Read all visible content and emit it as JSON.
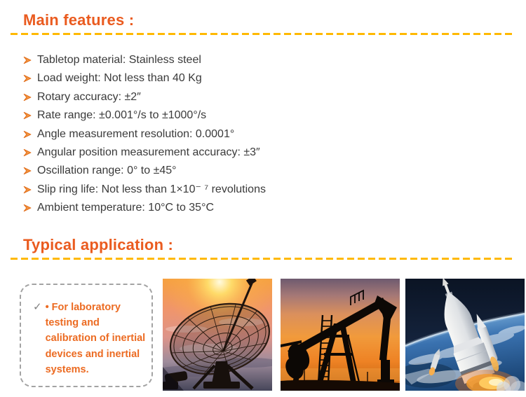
{
  "colors": {
    "heading_orange": "#EA5B1F",
    "divider_gold": "#FFB900",
    "bullet_orange": "#ED7D31",
    "body_text": "#3A3A3A",
    "callout_text_orange": "#EC6B22",
    "callout_border_gray": "#A3A3A3",
    "check_gray": "#7F7F7F"
  },
  "sections": {
    "features": {
      "heading": "Main features :",
      "bullet_icon": "arrow-bullet-icon",
      "items": [
        "Tabletop material: Stainless steel",
        "Load weight: Not less than 40 Kg",
        "Rotary accuracy: ±2″",
        "Rate range: ±0.001°/s to ±1000°/s",
        "Angle measurement resolution: 0.0001°",
        "Angular position measurement accuracy: ±3″",
        "Oscillation range: 0° to ±45°",
        "Slip ring life: Not less than 1×10⁻ ⁷ revolutions",
        "Ambient temperature: 10°C to 35°C"
      ]
    },
    "application": {
      "heading": "Typical application :",
      "check_glyph": "✓",
      "note": "• For laboratory testing and calibration of inertial devices and inertial systems.",
      "images": [
        {
          "name": "photo-satellite-dish",
          "description": "Satellite dish antenna silhouetted against an orange sunset sky"
        },
        {
          "name": "photo-oil-pumpjack",
          "description": "Oil pumpjack silhouetted against an orange sunset sky"
        },
        {
          "name": "photo-rocket-launch",
          "description": "White rocket ascending above Earth with booster separation and flames"
        }
      ]
    }
  }
}
